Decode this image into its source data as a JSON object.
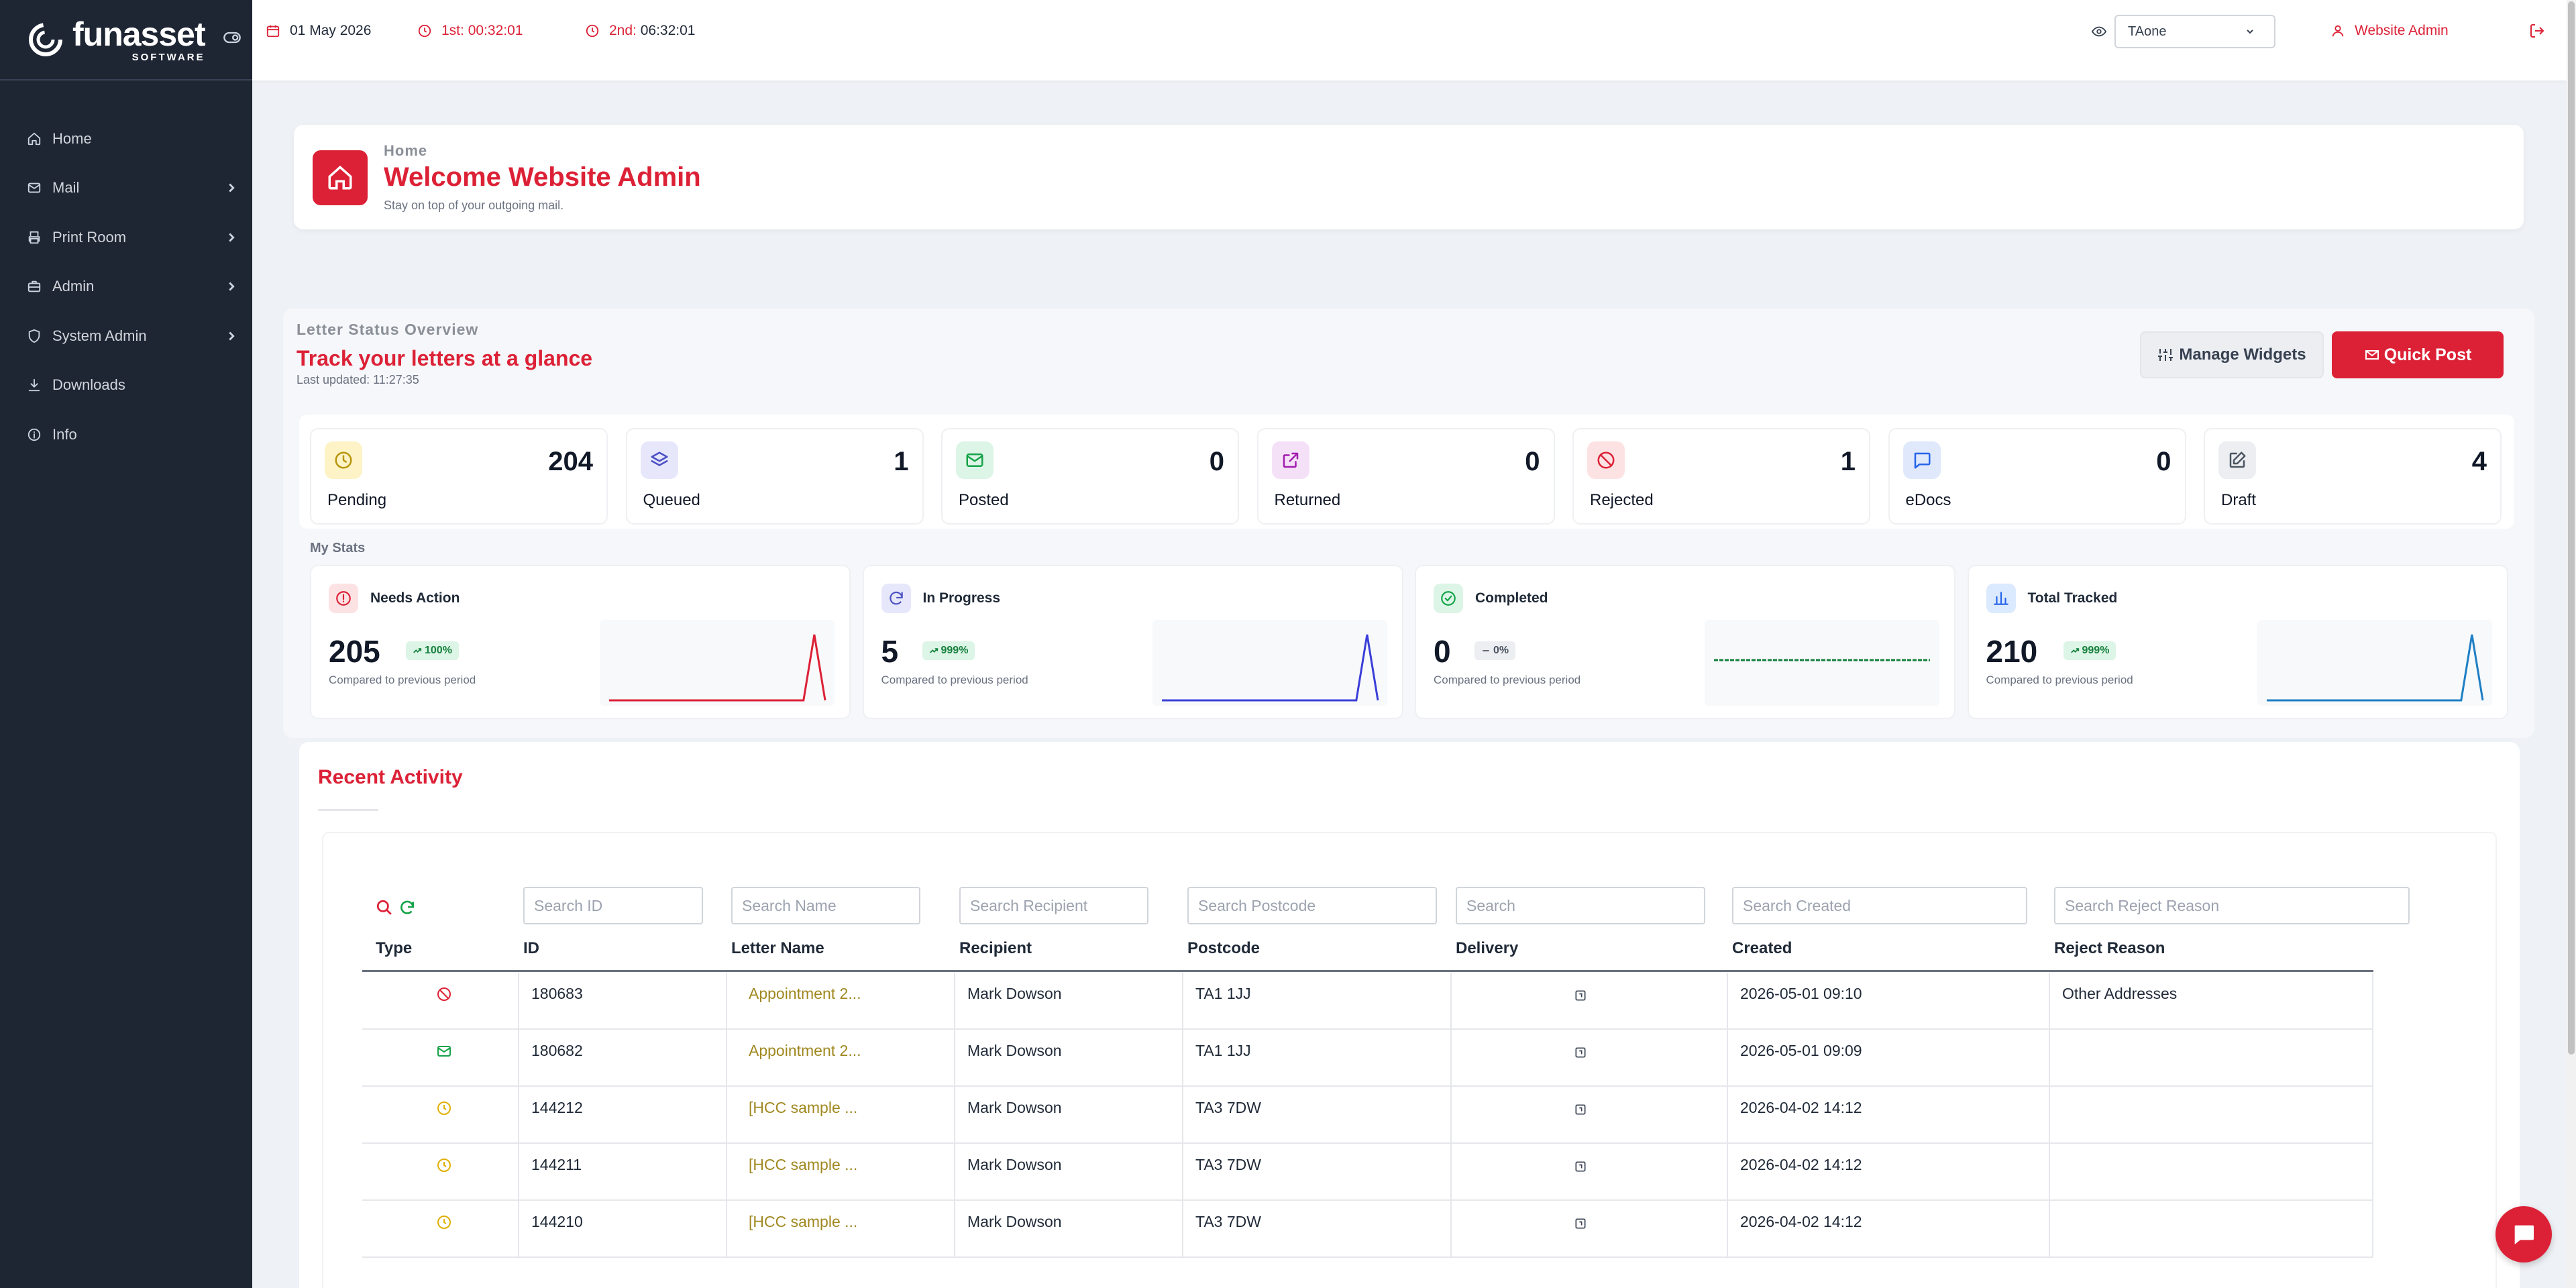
{
  "brand": {
    "name": "funasset",
    "sub": "SOFTWARE"
  },
  "sidebar": {
    "items": [
      {
        "label": "Home",
        "icon": "home-icon",
        "has_children": false
      },
      {
        "label": "Mail",
        "icon": "mail-icon",
        "has_children": true
      },
      {
        "label": "Print Room",
        "icon": "printer-icon",
        "has_children": true
      },
      {
        "label": "Admin",
        "icon": "briefcase-icon",
        "has_children": true
      },
      {
        "label": "System Admin",
        "icon": "shield-icon",
        "has_children": true
      },
      {
        "label": "Downloads",
        "icon": "download-icon",
        "has_children": false
      },
      {
        "label": "Info",
        "icon": "info-icon",
        "has_children": false
      }
    ]
  },
  "topbar": {
    "date": "01 May 2026",
    "first_label": "1st:",
    "first_time": "00:32:01",
    "second_label": "2nd:",
    "second_time": "06:32:01",
    "account_select": "TAone",
    "user": "Website Admin"
  },
  "welcome": {
    "breadcrumb": "Home",
    "title": "Welcome Website Admin",
    "subtitle": "Stay on top of your outgoing mail."
  },
  "overview": {
    "label": "Letter Status Overview",
    "title": "Track your letters at a glance",
    "updated": "Last updated: 11:27:35",
    "manage_widgets": "Manage Widgets",
    "quick_post": "Quick Post"
  },
  "statuses": [
    {
      "label": "Pending",
      "value": "204",
      "icon": "clock-icon",
      "bg": "#fdf3c7",
      "color": "#b7950b"
    },
    {
      "label": "Queued",
      "value": "1",
      "icon": "layers-icon",
      "bg": "#e6e7fb",
      "color": "#4b4fc4"
    },
    {
      "label": "Posted",
      "value": "0",
      "icon": "envelope-icon",
      "bg": "#dcf5e6",
      "color": "#16a34a"
    },
    {
      "label": "Returned",
      "value": "0",
      "icon": "external-link-icon",
      "bg": "#f5e1f7",
      "color": "#a21caf"
    },
    {
      "label": "Rejected",
      "value": "1",
      "icon": "ban-icon",
      "bg": "#fde2e4",
      "color": "#dc2136"
    },
    {
      "label": "eDocs",
      "value": "0",
      "icon": "chat-bubble-icon",
      "bg": "#dfe9fb",
      "color": "#2563eb"
    },
    {
      "label": "Draft",
      "value": "4",
      "icon": "edit-icon",
      "bg": "#eceef1",
      "color": "#4b5563"
    }
  ],
  "my_stats": {
    "label": "My Stats",
    "compare_text": "Compared to previous period",
    "cards": [
      {
        "title": "Needs Action",
        "value": "205",
        "change": "100%",
        "trend": "up",
        "icon": "alert-circle-icon",
        "bg": "#fde2e4",
        "color": "#dc2136",
        "line": "#dc2136",
        "spark": [
          0,
          0,
          0,
          0,
          0,
          0,
          0,
          0,
          0,
          0,
          0,
          0,
          0,
          0,
          0,
          0,
          0,
          0,
          0,
          1,
          0
        ]
      },
      {
        "title": "In Progress",
        "value": "5",
        "change": "999%",
        "trend": "up",
        "icon": "refresh-icon",
        "bg": "#e6e7fb",
        "color": "#4b4fc4",
        "line": "#3b3fd8",
        "spark": [
          0,
          0,
          0,
          0,
          0,
          0,
          0,
          0,
          0,
          0,
          0,
          0,
          0,
          0,
          0,
          0,
          0,
          0,
          0,
          1,
          0
        ]
      },
      {
        "title": "Completed",
        "value": "0",
        "change": "0%",
        "trend": "flat",
        "icon": "check-circle-icon",
        "bg": "#dcf5e6",
        "color": "#16a34a",
        "line": "#15803d",
        "spark": [
          0,
          0,
          0,
          0,
          0,
          0,
          0,
          0,
          0,
          0,
          0,
          0,
          0,
          0,
          0,
          0,
          0,
          0,
          0,
          0,
          0
        ]
      },
      {
        "title": "Total Tracked",
        "value": "210",
        "change": "999%",
        "trend": "up",
        "icon": "bar-chart-icon",
        "bg": "#dbeafe",
        "color": "#2563eb",
        "line": "#1d7fc4",
        "spark": [
          0,
          0,
          0,
          0,
          0,
          0,
          0,
          0,
          0,
          0,
          0,
          0,
          0,
          0,
          0,
          0,
          0,
          0,
          0,
          1,
          0
        ]
      }
    ]
  },
  "recent": {
    "title": "Recent Activity",
    "search_placeholders": [
      "Search ID",
      "Search Name",
      "Search Recipient",
      "Search Postcode",
      "Search",
      "Search Created",
      "Search Reject Reason"
    ],
    "columns": [
      "Type",
      "ID",
      "Letter Name",
      "Recipient",
      "Postcode",
      "Delivery",
      "Created",
      "Reject Reason"
    ],
    "rows": [
      {
        "type": "rejected",
        "id": "180683",
        "name": "Appointment 2...",
        "recipient": "Mark Dowson",
        "postcode": "TA1 1JJ",
        "created": "2026-05-01 09:10",
        "reason": "Other Addresses"
      },
      {
        "type": "posted",
        "id": "180682",
        "name": "Appointment 2...",
        "recipient": "Mark Dowson",
        "postcode": "TA1 1JJ",
        "created": "2026-05-01 09:09",
        "reason": ""
      },
      {
        "type": "pending",
        "id": "144212",
        "name": "[HCC sample ...",
        "recipient": "Mark Dowson",
        "postcode": "TA3 7DW",
        "created": "2026-04-02 14:12",
        "reason": ""
      },
      {
        "type": "pending",
        "id": "144211",
        "name": "[HCC sample ...",
        "recipient": "Mark Dowson",
        "postcode": "TA3 7DW",
        "created": "2026-04-02 14:12",
        "reason": ""
      },
      {
        "type": "pending",
        "id": "144210",
        "name": "[HCC sample ...",
        "recipient": "Mark Dowson",
        "postcode": "TA3 7DW",
        "created": "2026-04-02 14:12",
        "reason": ""
      }
    ]
  }
}
